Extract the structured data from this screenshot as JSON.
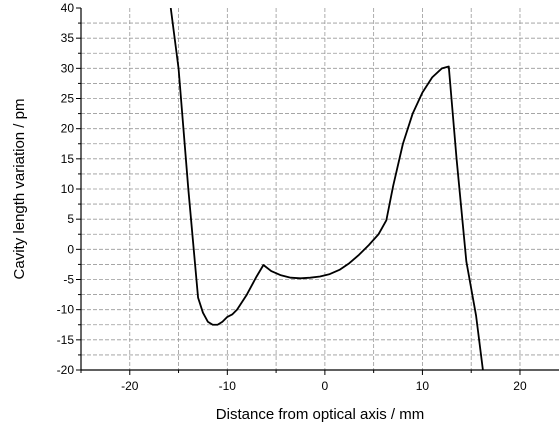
{
  "chart_data": {
    "type": "line",
    "xlabel": "Distance from optical axis / mm",
    "ylabel": "Cavity length variation / pm",
    "xlim": [
      -25,
      24
    ],
    "ylim": [
      -20,
      40
    ],
    "x_ticks": [
      -20,
      -10,
      0,
      10,
      20
    ],
    "x_tick_labels": [
      "-20",
      "-10",
      "0",
      "10",
      "20"
    ],
    "y_ticks": [
      -20,
      -15,
      -10,
      -5,
      0,
      5,
      10,
      15,
      20,
      25,
      30,
      35,
      40
    ],
    "y_tick_labels": [
      "-20",
      "-15",
      "-10",
      "-5",
      "0",
      "5",
      "10",
      "15",
      "20",
      "25",
      "30",
      "35",
      "40"
    ],
    "grid": true,
    "series": [
      {
        "color": "#000000",
        "x": [
          -15.8,
          -15.0,
          -14.0,
          -13.0,
          -12.5,
          -12.0,
          -11.5,
          -11.0,
          -10.5,
          -10.0,
          -9.5,
          -9.0,
          -8.0,
          -7.0,
          -6.3,
          -5.5,
          -4.5,
          -3.5,
          -2.5,
          -1.5,
          -0.5,
          0.5,
          1.5,
          2.5,
          3.5,
          4.5,
          5.5,
          6.3,
          7.0,
          8.0,
          9.0,
          10.0,
          11.0,
          12.0,
          12.7,
          13.5,
          14.5,
          15.5,
          16.2
        ],
        "y": [
          40.0,
          30.0,
          10.0,
          -8.0,
          -10.5,
          -12.0,
          -12.5,
          -12.5,
          -12.0,
          -11.2,
          -10.8,
          -10.0,
          -7.5,
          -4.5,
          -2.6,
          -3.6,
          -4.3,
          -4.7,
          -4.8,
          -4.7,
          -4.5,
          -4.1,
          -3.4,
          -2.3,
          -0.9,
          0.7,
          2.5,
          4.8,
          10.5,
          17.5,
          22.5,
          26.0,
          28.5,
          30.0,
          30.3,
          15.0,
          -2.0,
          -11.0,
          -20.0
        ]
      }
    ]
  }
}
